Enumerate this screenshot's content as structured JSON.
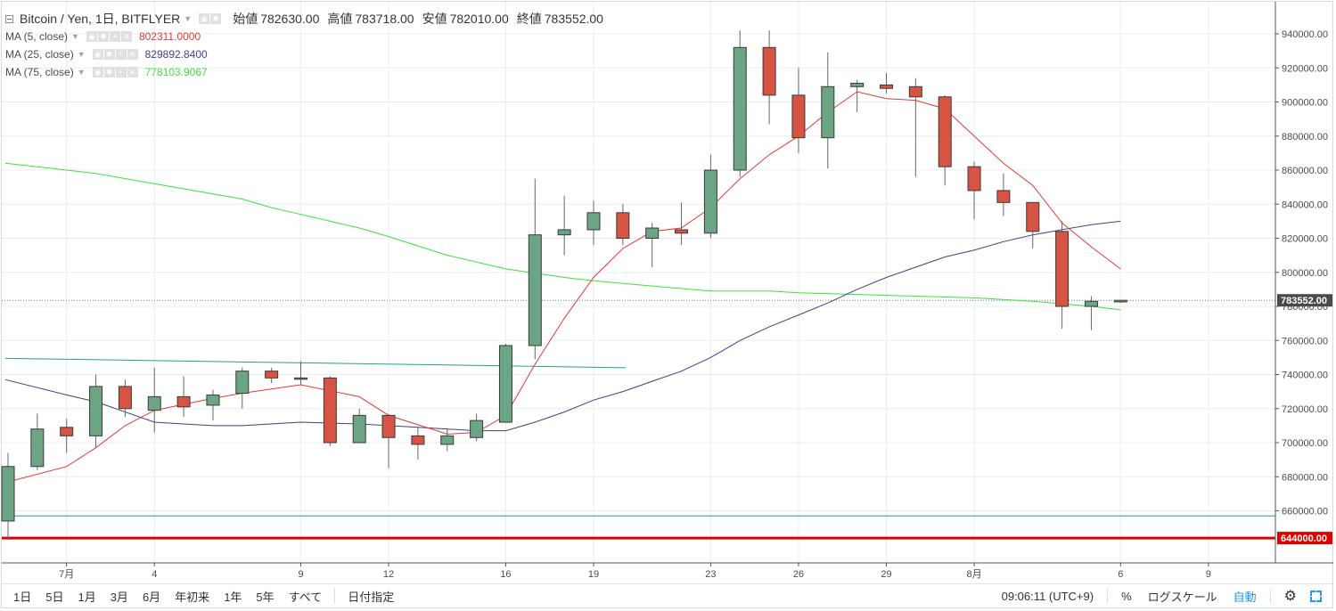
{
  "legend": {
    "symbol": "Bitcoin / Yen, 1日, BITFLYER",
    "open_label": "始値",
    "open_value": "782630.00",
    "high_label": "高値",
    "high_value": "783718.00",
    "low_label": "安値",
    "low_value": "782010.00",
    "close_label": "終値",
    "close_value": "783552.00",
    "ma": [
      {
        "label": "MA (5, close)",
        "value": "802311.0000",
        "color": "#e53935"
      },
      {
        "label": "MA (25, close)",
        "value": "829892.8400",
        "color": "#3f3f87"
      },
      {
        "label": "MA (75, close)",
        "value": "778103.9067",
        "color": "#3ee03e"
      }
    ]
  },
  "colors": {
    "up": "#6ba583",
    "down": "#d75442",
    "border": "#3a3a3a",
    "wick": "#666666",
    "ma5": "#e53935",
    "ma25": "#3f3f87",
    "ma75": "#3ee03e",
    "support_line": "#e00000",
    "trend_line": "#2a9d8f",
    "price_badge": "#4a4a4a"
  },
  "chart_data": {
    "type": "candlestick",
    "y_axis": {
      "ticks": [
        "660000.00",
        "680000.00",
        "700000.00",
        "720000.00",
        "740000.00",
        "760000.00",
        "780000.00",
        "800000.00",
        "820000.00",
        "840000.00",
        "860000.00",
        "880000.00",
        "900000.00",
        "920000.00",
        "940000.00"
      ],
      "current_price_label": "783552.00",
      "support_label": "644000.00"
    },
    "x_axis": {
      "ticks": [
        {
          "label": "7月",
          "i": 2
        },
        {
          "label": "4",
          "i": 5
        },
        {
          "label": "9",
          "i": 10
        },
        {
          "label": "12",
          "i": 13
        },
        {
          "label": "16",
          "i": 17
        },
        {
          "label": "19",
          "i": 20
        },
        {
          "label": "23",
          "i": 24
        },
        {
          "label": "26",
          "i": 27
        },
        {
          "label": "29",
          "i": 30
        },
        {
          "label": "8月",
          "i": 33
        },
        {
          "label": "6",
          "i": 38
        },
        {
          "label": "9",
          "i": 41
        }
      ]
    },
    "candles": [
      {
        "o": 654000,
        "h": 694000,
        "l": 643000,
        "c": 686000
      },
      {
        "o": 686000,
        "h": 717000,
        "l": 684000,
        "c": 708000
      },
      {
        "o": 709000,
        "h": 714000,
        "l": 694000,
        "c": 704000
      },
      {
        "o": 704000,
        "h": 740000,
        "l": 697000,
        "c": 733000
      },
      {
        "o": 733000,
        "h": 737000,
        "l": 715000,
        "c": 720000
      },
      {
        "o": 719000,
        "h": 744000,
        "l": 706000,
        "c": 727000
      },
      {
        "o": 727000,
        "h": 739000,
        "l": 715000,
        "c": 721000
      },
      {
        "o": 722000,
        "h": 731000,
        "l": 713000,
        "c": 728000
      },
      {
        "o": 729000,
        "h": 744000,
        "l": 720000,
        "c": 742000
      },
      {
        "o": 742000,
        "h": 744000,
        "l": 735000,
        "c": 738000
      },
      {
        "o": 738000,
        "h": 748000,
        "l": 734000,
        "c": 738000
      },
      {
        "o": 738000,
        "h": 739000,
        "l": 698000,
        "c": 700000
      },
      {
        "o": 700000,
        "h": 720000,
        "l": 700000,
        "c": 716000
      },
      {
        "o": 716000,
        "h": 717000,
        "l": 685000,
        "c": 703000
      },
      {
        "o": 704000,
        "h": 709000,
        "l": 690000,
        "c": 699000
      },
      {
        "o": 699000,
        "h": 708000,
        "l": 695000,
        "c": 704000
      },
      {
        "o": 703000,
        "h": 717000,
        "l": 701000,
        "c": 713000
      },
      {
        "o": 712000,
        "h": 758000,
        "l": 712000,
        "c": 757000
      },
      {
        "o": 757000,
        "h": 855000,
        "l": 749000,
        "c": 822000
      },
      {
        "o": 822000,
        "h": 845000,
        "l": 810000,
        "c": 825000
      },
      {
        "o": 825000,
        "h": 842000,
        "l": 816000,
        "c": 835000
      },
      {
        "o": 835000,
        "h": 840000,
        "l": 816000,
        "c": 820000
      },
      {
        "o": 820000,
        "h": 829000,
        "l": 803000,
        "c": 826000
      },
      {
        "o": 825000,
        "h": 841000,
        "l": 816000,
        "c": 823000
      },
      {
        "o": 823000,
        "h": 869000,
        "l": 820000,
        "c": 860000
      },
      {
        "o": 860000,
        "h": 942000,
        "l": 856000,
        "c": 932000
      },
      {
        "o": 932000,
        "h": 942000,
        "l": 887000,
        "c": 904000
      },
      {
        "o": 904000,
        "h": 920000,
        "l": 870000,
        "c": 879000
      },
      {
        "o": 879000,
        "h": 929000,
        "l": 861000,
        "c": 909000
      },
      {
        "o": 909000,
        "h": 913000,
        "l": 894000,
        "c": 911000
      },
      {
        "o": 910000,
        "h": 917000,
        "l": 905000,
        "c": 908000
      },
      {
        "o": 909000,
        "h": 914000,
        "l": 856000,
        "c": 903000
      },
      {
        "o": 903000,
        "h": 904000,
        "l": 851000,
        "c": 862000
      },
      {
        "o": 862000,
        "h": 865000,
        "l": 831000,
        "c": 848000
      },
      {
        "o": 848000,
        "h": 858000,
        "l": 833000,
        "c": 841000
      },
      {
        "o": 841000,
        "h": 841000,
        "l": 814000,
        "c": 824000
      },
      {
        "o": 824000,
        "h": 830000,
        "l": 767000,
        "c": 780000
      },
      {
        "o": 780000,
        "h": 786000,
        "l": 766000,
        "c": 783000
      },
      {
        "o": 782630,
        "h": 783718,
        "l": 782010,
        "c": 783552
      }
    ],
    "ma5": [
      [
        0,
        677000
      ],
      [
        2,
        686000
      ],
      [
        3,
        697000
      ],
      [
        4,
        710000
      ],
      [
        5,
        719000
      ],
      [
        7,
        726000
      ],
      [
        8,
        729000
      ],
      [
        10,
        734000
      ],
      [
        12,
        727000
      ],
      [
        13,
        716000
      ],
      [
        15,
        705000
      ],
      [
        16,
        706000
      ],
      [
        17,
        716000
      ],
      [
        18,
        746000
      ],
      [
        19,
        773000
      ],
      [
        20,
        797000
      ],
      [
        21,
        814000
      ],
      [
        22,
        824000
      ],
      [
        23,
        826000
      ],
      [
        24,
        838000
      ],
      [
        25,
        855000
      ],
      [
        26,
        869000
      ],
      [
        27,
        880000
      ],
      [
        28,
        894000
      ],
      [
        29,
        906000
      ],
      [
        30,
        902000
      ],
      [
        31,
        901000
      ],
      [
        32,
        896000
      ],
      [
        33,
        880000
      ],
      [
        34,
        864000
      ],
      [
        35,
        851000
      ],
      [
        36,
        829000
      ],
      [
        37,
        815000
      ],
      [
        38,
        802000
      ]
    ],
    "ma25": [
      [
        -0.1,
        737000
      ],
      [
        2,
        728000
      ],
      [
        3,
        724000
      ],
      [
        5,
        712000
      ],
      [
        6,
        711000
      ],
      [
        7,
        710000
      ],
      [
        8,
        710000
      ],
      [
        10,
        712000
      ],
      [
        12,
        711000
      ],
      [
        14,
        709000
      ],
      [
        16,
        707000
      ],
      [
        17,
        707000
      ],
      [
        18,
        712000
      ],
      [
        19,
        718000
      ],
      [
        20,
        725000
      ],
      [
        21,
        730000
      ],
      [
        22,
        736000
      ],
      [
        23,
        742000
      ],
      [
        24,
        750000
      ],
      [
        25,
        760000
      ],
      [
        26,
        768000
      ],
      [
        27,
        775000
      ],
      [
        28,
        782000
      ],
      [
        29,
        790000
      ],
      [
        30,
        797000
      ],
      [
        31,
        803000
      ],
      [
        32,
        809000
      ],
      [
        33,
        813000
      ],
      [
        34,
        818000
      ],
      [
        35,
        822000
      ],
      [
        36,
        825000
      ],
      [
        37,
        828000
      ],
      [
        38,
        830000
      ]
    ],
    "ma75": [
      [
        -0.1,
        864000
      ],
      [
        1,
        862000
      ],
      [
        3,
        858000
      ],
      [
        5,
        852000
      ],
      [
        7,
        846000
      ],
      [
        8,
        843000
      ],
      [
        9,
        838000
      ],
      [
        10,
        834000
      ],
      [
        12,
        826000
      ],
      [
        13,
        821000
      ],
      [
        15,
        810000
      ],
      [
        17,
        802000
      ],
      [
        19,
        797000
      ],
      [
        20,
        795000
      ],
      [
        22,
        792000
      ],
      [
        24,
        789000
      ],
      [
        26,
        789000
      ],
      [
        27,
        788000
      ],
      [
        29,
        787000
      ],
      [
        31,
        786000
      ],
      [
        33,
        785000
      ],
      [
        35,
        783000
      ],
      [
        37,
        780000
      ],
      [
        38,
        778000
      ]
    ],
    "trend_line": [
      [
        -0.1,
        749500
      ],
      [
        21.1,
        744000
      ]
    ],
    "support_level": 644000,
    "horizontal_line": 657000,
    "current_price": 783552
  },
  "bottom_bar": {
    "ranges": [
      "1日",
      "5日",
      "1月",
      "3月",
      "6月",
      "年初来",
      "1年",
      "5年",
      "すべて"
    ],
    "date_range": "日付指定",
    "clock": "09:06:11 (UTC+9)",
    "percent": "%",
    "log_scale": "ログスケール",
    "auto": "自動"
  }
}
